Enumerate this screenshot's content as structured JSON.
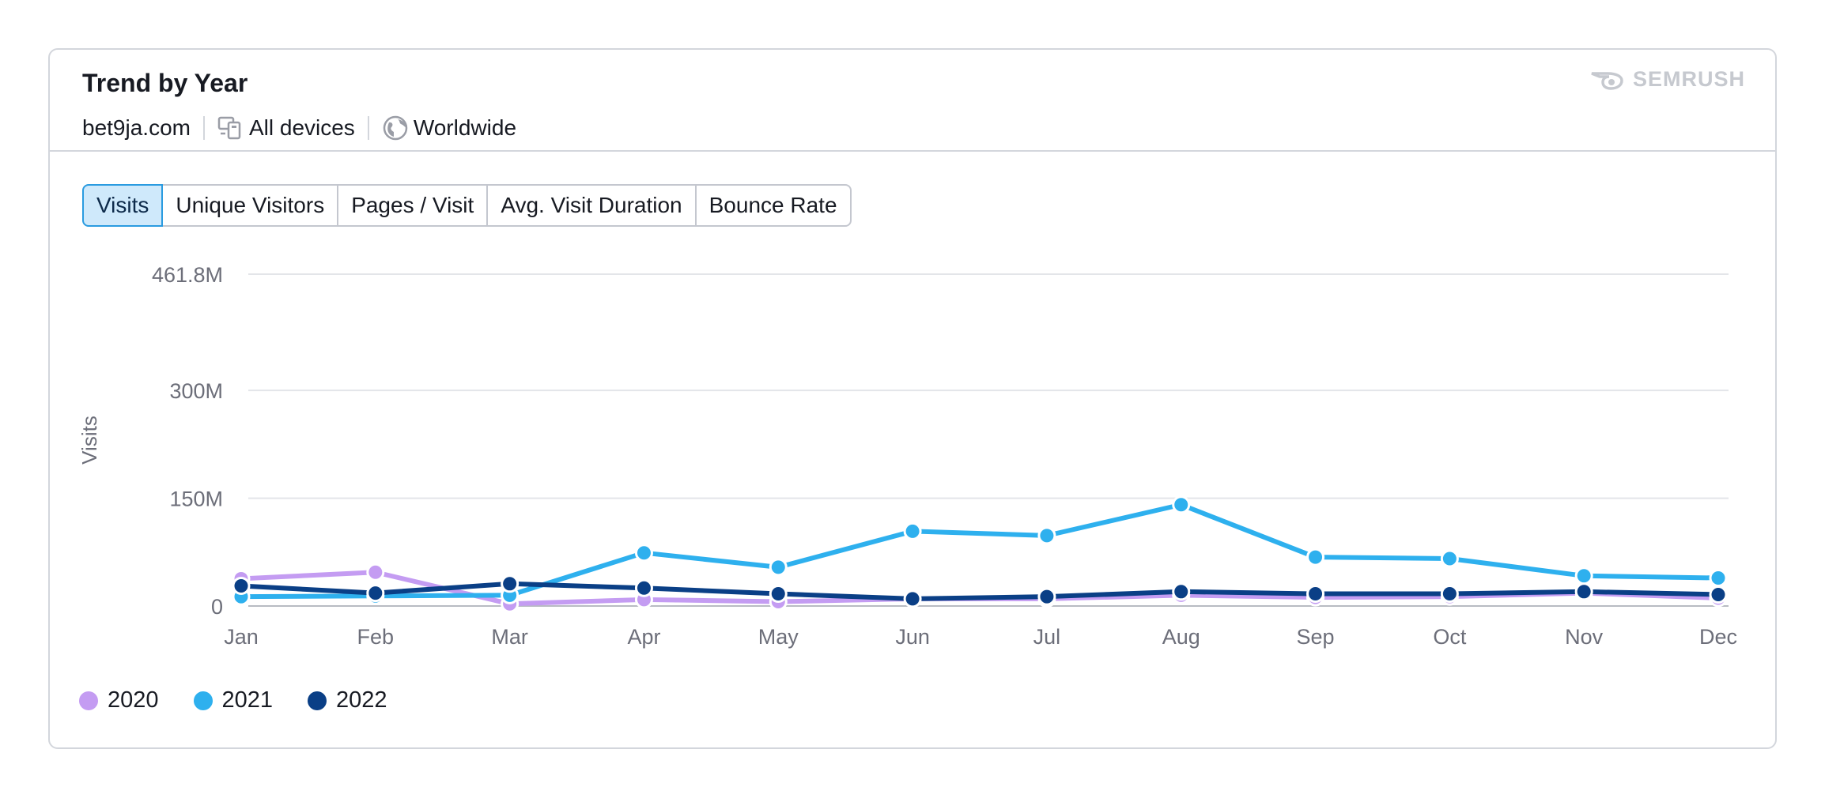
{
  "header": {
    "title": "Trend by Year",
    "domain": "bet9ja.com",
    "devices": "All devices",
    "region": "Worldwide",
    "brand": "SEMRUSH"
  },
  "tabs": [
    {
      "label": "Visits",
      "active": true
    },
    {
      "label": "Unique Visitors",
      "active": false
    },
    {
      "label": "Pages / Visit",
      "active": false
    },
    {
      "label": "Avg. Visit Duration",
      "active": false
    },
    {
      "label": "Bounce Rate",
      "active": false
    }
  ],
  "chart_data": {
    "type": "line",
    "title": "Trend by Year",
    "ylabel": "Visits",
    "xlabel": "",
    "categories": [
      "Jan",
      "Feb",
      "Mar",
      "Apr",
      "May",
      "Jun",
      "Jul",
      "Aug",
      "Sep",
      "Oct",
      "Nov",
      "Dec"
    ],
    "yticks": [
      {
        "value": 0,
        "label": "0"
      },
      {
        "value": 150,
        "label": "150M"
      },
      {
        "value": 300,
        "label": "300M"
      },
      {
        "value": 461.8,
        "label": "461.8M"
      }
    ],
    "ylim": [
      0,
      461.8
    ],
    "unit": "M",
    "grid": true,
    "legend_position": "bottom-left",
    "series": [
      {
        "name": "2020",
        "color": "#c49cf2",
        "values": [
          38,
          47,
          3,
          9,
          6,
          10,
          10,
          15,
          12,
          13,
          18,
          11
        ]
      },
      {
        "name": "2021",
        "color": "#2eb0ee",
        "values": [
          13,
          14,
          15,
          74,
          54,
          104,
          98,
          141,
          68,
          66,
          42,
          39
        ]
      },
      {
        "name": "2022",
        "color": "#0a3f86",
        "values": [
          28,
          18,
          31,
          25,
          17,
          10,
          13,
          20,
          17,
          17,
          20,
          16
        ]
      }
    ]
  }
}
